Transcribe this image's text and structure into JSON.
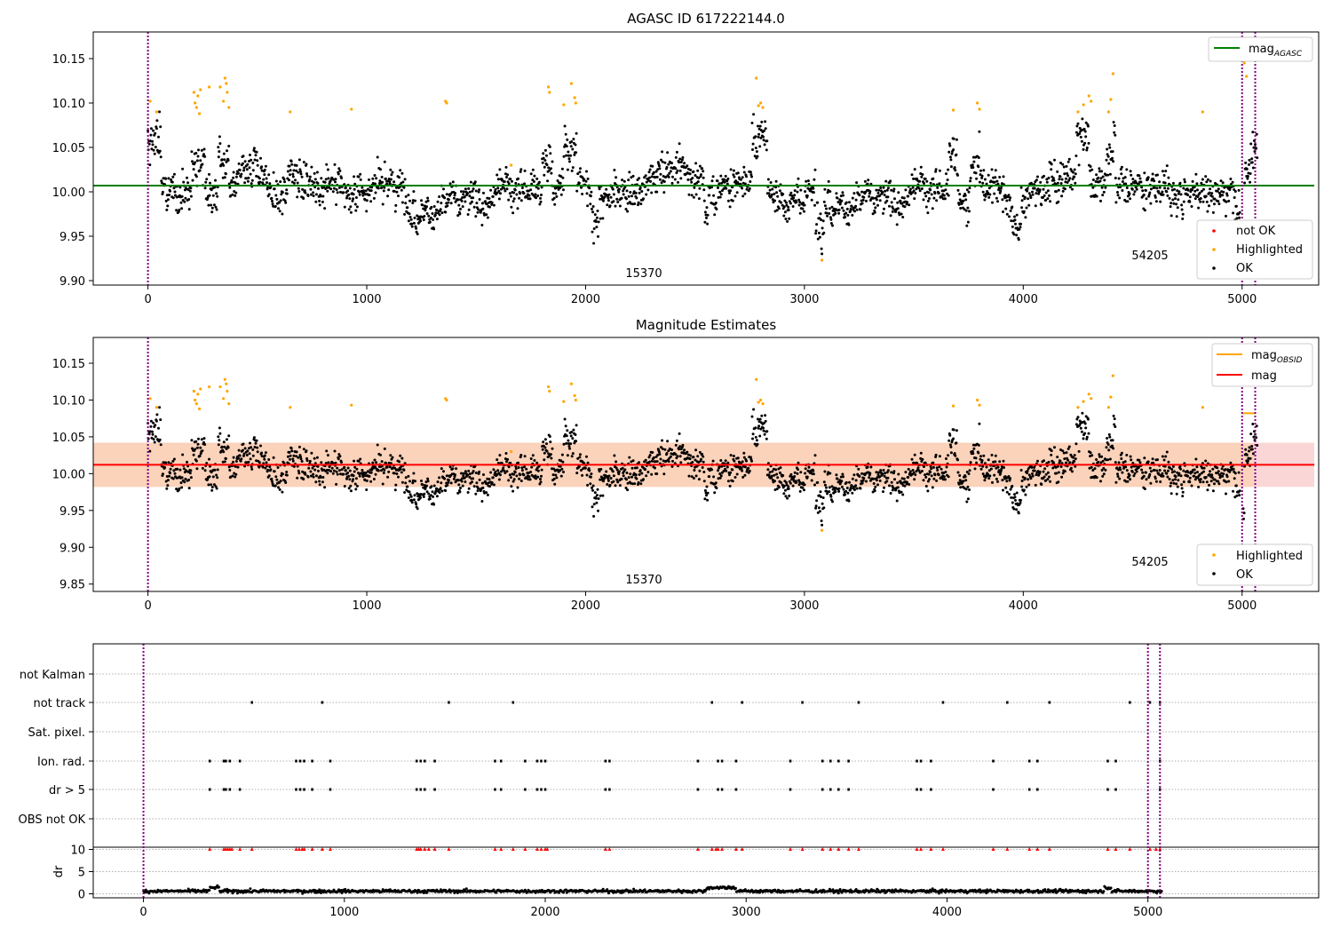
{
  "chart_data": [
    {
      "type": "scatter",
      "title": "AGASC ID 617222144.0",
      "xlabel": "",
      "ylabel": "",
      "xlim": [
        -250,
        5350
      ],
      "ylim": [
        9.895,
        10.18
      ],
      "x_ticks": [
        "0",
        "1000",
        "2000",
        "3000",
        "4000",
        "5000"
      ],
      "y_ticks": [
        "9.90",
        "9.95",
        "10.00",
        "10.05",
        "10.10",
        "10.15"
      ],
      "y_tick_values": [
        9.9,
        9.95,
        10.0,
        10.05,
        10.1,
        10.15
      ],
      "vlines": [
        0,
        5000,
        5060
      ],
      "annotations": [
        {
          "text": "15370",
          "x": 2500,
          "y": 9.905
        },
        {
          "text": "54205",
          "x": 5000,
          "y": 9.925
        }
      ],
      "line_series": [
        {
          "name": "mag_AGASC",
          "color": "#008000",
          "x": [
            -250,
            5330
          ],
          "y": [
            10.007,
            10.007
          ]
        }
      ],
      "scatter_series": [
        {
          "name": "not OK",
          "color": "#ff0000",
          "points": []
        },
        {
          "name": "Highlighted",
          "color": "#ffa500",
          "description": "sparse points above ~10.085 and isolated low outliers",
          "points": [
            [
              10,
              10.102
            ],
            [
              40,
              10.09
            ],
            [
              210,
              10.112
            ],
            [
              215,
              10.1
            ],
            [
              222,
              10.095
            ],
            [
              228,
              10.108
            ],
            [
              235,
              10.088
            ],
            [
              240,
              10.115
            ],
            [
              280,
              10.118
            ],
            [
              330,
              10.118
            ],
            [
              345,
              10.102
            ],
            [
              352,
              10.128
            ],
            [
              358,
              10.122
            ],
            [
              362,
              10.112
            ],
            [
              370,
              10.095
            ],
            [
              650,
              10.09
            ],
            [
              930,
              10.093
            ],
            [
              1360,
              10.102
            ],
            [
              1365,
              10.1
            ],
            [
              1660,
              10.03
            ],
            [
              1830,
              10.118
            ],
            [
              1835,
              10.112
            ],
            [
              1900,
              10.098
            ],
            [
              1935,
              10.122
            ],
            [
              1950,
              10.106
            ],
            [
              1955,
              10.1
            ],
            [
              2780,
              10.128
            ],
            [
              2790,
              10.097
            ],
            [
              2800,
              10.1
            ],
            [
              2810,
              10.095
            ],
            [
              3080,
              9.923
            ],
            [
              3680,
              10.092
            ],
            [
              3790,
              10.1
            ],
            [
              3800,
              10.093
            ],
            [
              4250,
              10.09
            ],
            [
              4275,
              10.098
            ],
            [
              4300,
              10.108
            ],
            [
              4310,
              10.102
            ],
            [
              4390,
              10.09
            ],
            [
              4410,
              10.133
            ],
            [
              4400,
              10.104
            ],
            [
              4820,
              10.09
            ],
            [
              5010,
              10.145
            ],
            [
              5020,
              10.13
            ]
          ]
        },
        {
          "name": "OK",
          "color": "#000000",
          "description": "dense points fluctuating around 10.0-10.03",
          "points": []
        }
      ],
      "legend_lines": [
        "mag_AGASC"
      ],
      "legend_scatter": [
        "not OK",
        "Highlighted",
        "OK"
      ]
    },
    {
      "type": "scatter",
      "title": "Magnitude Estimates",
      "xlabel": "",
      "ylabel": "",
      "xlim": [
        -250,
        5350
      ],
      "ylim": [
        9.84,
        10.185
      ],
      "x_ticks": [
        "0",
        "1000",
        "2000",
        "3000",
        "4000",
        "5000"
      ],
      "y_ticks": [
        "9.85",
        "9.90",
        "9.95",
        "10.00",
        "10.05",
        "10.10",
        "10.15"
      ],
      "y_tick_values": [
        9.85,
        9.9,
        9.95,
        10.0,
        10.05,
        10.1,
        10.15
      ],
      "vlines": [
        0,
        5000,
        5060
      ],
      "annotations": [
        {
          "text": "15370",
          "x": 2500,
          "y": 9.86
        },
        {
          "text": "54205",
          "x": 5000,
          "y": 9.88
        }
      ],
      "bands": [
        {
          "color": "#f9c8c8",
          "x": [
            -250,
            5330
          ],
          "y": [
            9.982,
            10.042
          ]
        },
        {
          "color": "#fbd0b0",
          "x": [
            -250,
            5050
          ],
          "y": [
            9.982,
            10.042
          ]
        }
      ],
      "line_series": [
        {
          "name": "mag_OBSID",
          "color": "#ffa500",
          "x": [
            5000,
            5060
          ],
          "y": [
            10.082,
            10.082
          ]
        },
        {
          "name": "mag",
          "color": "#ff0000",
          "x": [
            -250,
            5330
          ],
          "y": [
            10.012,
            10.012
          ]
        }
      ],
      "scatter_series": [
        {
          "name": "Highlighted",
          "color": "#ffa500",
          "points": "same as panel 1"
        },
        {
          "name": "OK",
          "color": "#000000",
          "points": "same as panel 1"
        }
      ],
      "legend_lines": [
        "mag_OBSID",
        "mag"
      ],
      "legend_scatter": [
        "Highlighted",
        "OK"
      ]
    },
    {
      "type": "scatter",
      "title": "",
      "xlim": [
        -250,
        5850
      ],
      "x_ticks": [
        "0",
        "1000",
        "2000",
        "3000",
        "4000",
        "5000"
      ],
      "flag_rows": [
        "not Kalman",
        "not track",
        "Sat. pixel.",
        "Ion. rad.",
        "dr > 5",
        "OBS not OK"
      ],
      "vlines": [
        0,
        5000,
        5060
      ],
      "flag_points": {
        "not track": [
          540,
          890,
          1520,
          1840,
          2830,
          2980,
          3280,
          3560,
          3980,
          4300,
          4510,
          4910,
          5010,
          5060
        ],
        "Ion. rad.": [
          330,
          400,
          410,
          430,
          480,
          760,
          780,
          800,
          840,
          930,
          1360,
          1380,
          1400,
          1450,
          1750,
          1780,
          1900,
          1960,
          1980,
          2000,
          2300,
          2320,
          2760,
          2860,
          2880,
          2950,
          3220,
          3380,
          3420,
          3460,
          3510,
          3850,
          3870,
          3920,
          4230,
          4410,
          4450,
          4800,
          4840,
          5060
        ],
        "dr > 5": [
          330,
          400,
          410,
          430,
          480,
          760,
          780,
          800,
          840,
          930,
          1360,
          1380,
          1400,
          1450,
          1750,
          1780,
          1900,
          1960,
          1980,
          2000,
          2300,
          2320,
          2760,
          2860,
          2880,
          2950,
          3220,
          3380,
          3420,
          3460,
          3510,
          3850,
          3870,
          3920,
          4230,
          4410,
          4450,
          4800,
          4840,
          5060
        ]
      },
      "dr_panel": {
        "ylabel": "dr",
        "ylim": [
          -0.5,
          10.5
        ],
        "y_ticks": [
          "0",
          "5",
          "10"
        ],
        "y_tick_values": [
          0,
          5,
          10
        ],
        "clipped_marker_color": "#ff0000",
        "clipped_x": [
          330,
          400,
          410,
          420,
          430,
          440,
          480,
          540,
          760,
          775,
          790,
          800,
          840,
          890,
          930,
          1360,
          1370,
          1380,
          1400,
          1420,
          1450,
          1520,
          1750,
          1780,
          1840,
          1900,
          1960,
          1980,
          2000,
          2010,
          2300,
          2320,
          2760,
          2830,
          2850,
          2860,
          2880,
          2950,
          2980,
          3220,
          3280,
          3380,
          3420,
          3460,
          3510,
          3560,
          3850,
          3870,
          3920,
          3980,
          4230,
          4300,
          4410,
          4450,
          4510,
          4800,
          4840,
          4910,
          5010,
          5040,
          5060
        ]
      }
    }
  ]
}
